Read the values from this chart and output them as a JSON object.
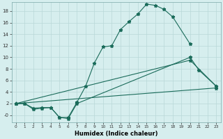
{
  "xlabel": "Humidex (Indice chaleur)",
  "xlim": [
    -0.5,
    23.5
  ],
  "ylim": [
    -1.2,
    19.5
  ],
  "background_color": "#d6eeee",
  "grid_color": "#b8d8d8",
  "line_color": "#1a6b5a",
  "line1_x": [
    0,
    1,
    2,
    3,
    4,
    5,
    6,
    7,
    8,
    9,
    10,
    11,
    12,
    13,
    14,
    15,
    16,
    17,
    18,
    20
  ],
  "line1_y": [
    2.0,
    2.0,
    1.0,
    1.2,
    1.3,
    -0.4,
    -0.4,
    2.2,
    5.0,
    9.0,
    11.8,
    12.0,
    14.8,
    16.2,
    17.5,
    19.2,
    19.0,
    18.3,
    17.0,
    12.3
  ],
  "line2_x": [
    0,
    1,
    2,
    3,
    4,
    5,
    6,
    7,
    20,
    21,
    23
  ],
  "line2_y": [
    2.0,
    2.0,
    1.2,
    1.3,
    1.3,
    -0.4,
    -0.6,
    2.0,
    10.0,
    7.8,
    5.0
  ],
  "line3_x": [
    0,
    20,
    23
  ],
  "line3_y": [
    2.0,
    9.5,
    5.0
  ],
  "line4_x": [
    0,
    23
  ],
  "line4_y": [
    2.0,
    4.7
  ],
  "yticks": [
    0,
    2,
    4,
    6,
    8,
    10,
    12,
    14,
    16,
    18
  ],
  "ytick_labels": [
    "-0",
    "2",
    "4",
    "6",
    "8",
    "10",
    "12",
    "14",
    "16",
    "18"
  ]
}
